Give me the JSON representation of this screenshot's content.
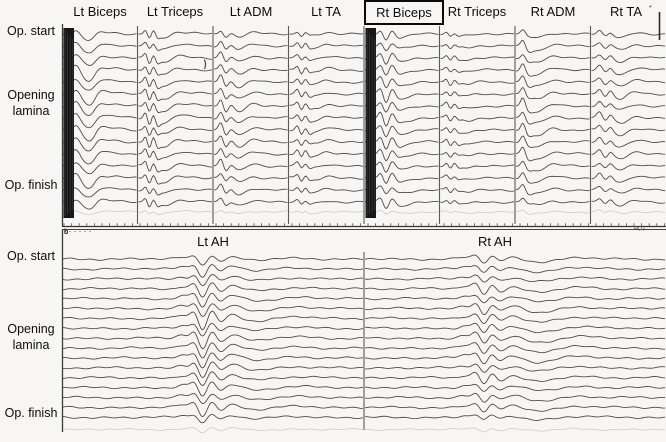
{
  "figure": {
    "panel_b_marker": "b",
    "top_right_mark": "*",
    "bottom_right_annotation": "H(1)"
  },
  "chart_data": {
    "type": "line",
    "subtype": "stacked waveform sweep traces (intraoperative motor evoked potential monitoring)",
    "axis_note": "no numeric axes shown; small time tick marks along the bottom edge of the upper panel",
    "panels": [
      {
        "id": "a",
        "row_labels": [
          "Op. start",
          "Opening lamina",
          "Op. finish"
        ],
        "trace_count": 15,
        "highlighted_column": "Rt Biceps",
        "columns": [
          {
            "label": "Lt Biceps",
            "boxed": false,
            "stim_artifact": true,
            "response_bumps": [
              [
                14,
                4,
                3
              ],
              [
                22,
                -2,
                3
              ],
              [
                28,
                -9,
                5
              ],
              [
                38,
                2.5,
                5
              ],
              [
                52,
                1.5,
                8
              ]
            ]
          },
          {
            "label": "Lt Triceps",
            "boxed": false,
            "stim_artifact": false,
            "response_bumps": [
              [
                8,
                5,
                1.8
              ],
              [
                12,
                -6,
                2
              ],
              [
                16,
                5,
                2
              ],
              [
                20,
                -4,
                2.2
              ],
              [
                27,
                -4.5,
                6
              ],
              [
                40,
                2,
                6
              ],
              [
                55,
                1,
                8
              ]
            ]
          },
          {
            "label": "Lt ADM",
            "boxed": false,
            "stim_artifact": false,
            "response_bumps": [
              [
                8,
                6.5,
                2.2
              ],
              [
                13,
                -5,
                2.5
              ],
              [
                18,
                3,
                3
              ],
              [
                26,
                -4.5,
                6
              ],
              [
                40,
                2,
                6
              ]
            ]
          },
          {
            "label": "Lt TA",
            "boxed": false,
            "stim_artifact": false,
            "response_bumps": [
              [
                9,
                4,
                2
              ],
              [
                13,
                -4,
                2
              ],
              [
                17,
                3.5,
                2
              ],
              [
                21,
                -2.5,
                2.5
              ],
              [
                28,
                -2,
                5
              ],
              [
                38,
                1.8,
                6
              ]
            ]
          },
          {
            "label": "Rt Biceps",
            "boxed": true,
            "stim_artifact": true,
            "response_bumps": [
              [
                17,
                6,
                2.5
              ],
              [
                22,
                -8,
                3
              ],
              [
                28,
                6,
                3
              ],
              [
                34,
                -3,
                4
              ],
              [
                42,
                -2.5,
                6
              ]
            ]
          },
          {
            "label": "Rt Triceps",
            "boxed": false,
            "stim_artifact": false,
            "response_bumps": [
              [
                7,
                3,
                1.8
              ],
              [
                11,
                -3.2,
                2
              ],
              [
                15,
                2.6,
                2
              ],
              [
                19,
                -2,
                2.5
              ],
              [
                28,
                -2,
                5
              ]
            ]
          },
          {
            "label": "Rt ADM",
            "boxed": false,
            "stim_artifact": false,
            "response_bumps": [
              [
                8,
                7,
                2.2
              ],
              [
                14,
                -3,
                3
              ],
              [
                22,
                -4.5,
                7
              ],
              [
                38,
                1.8,
                6
              ]
            ]
          },
          {
            "label": "Rt TA",
            "boxed": false,
            "stim_artifact": false,
            "response_bumps": [
              [
                9,
                4.5,
                2.5
              ],
              [
                15,
                -2.5,
                2.5
              ],
              [
                20,
                3.5,
                2.5
              ],
              [
                30,
                -4.5,
                6
              ],
              [
                45,
                1.5,
                7
              ]
            ]
          }
        ]
      },
      {
        "id": "b",
        "row_labels": [
          "Op. start",
          "Opening lamina",
          "Op. finish"
        ],
        "trace_count": 17,
        "columns": [
          {
            "label": "Lt AH",
            "boxed": false,
            "stim_artifact": false,
            "response_bumps": [
              [
                120,
                2.5,
                5
              ],
              [
                133,
                7,
                4
              ],
              [
                141,
                -12,
                5
              ],
              [
                149,
                9,
                5
              ],
              [
                158,
                -5,
                5
              ],
              [
                170,
                3.5,
                8
              ],
              [
                195,
                -2,
                12
              ],
              [
                235,
                1.2,
                14
              ]
            ]
          },
          {
            "label": "Rt AH",
            "boxed": false,
            "stim_artifact": false,
            "response_bumps": [
              [
                100,
                2,
                5
              ],
              [
                112,
                5,
                4
              ],
              [
                120,
                -6,
                4
              ],
              [
                128,
                4.5,
                4
              ],
              [
                136,
                -3,
                5
              ],
              [
                150,
                2.5,
                8
              ],
              [
                175,
                -3.5,
                14
              ],
              [
                215,
                1.5,
                14
              ]
            ]
          }
        ]
      }
    ],
    "colors": {
      "trace": "#4d4d4d",
      "divider": "#5a5a5a",
      "stim_artifact": "#171717",
      "background": "#f7f6f4"
    }
  }
}
